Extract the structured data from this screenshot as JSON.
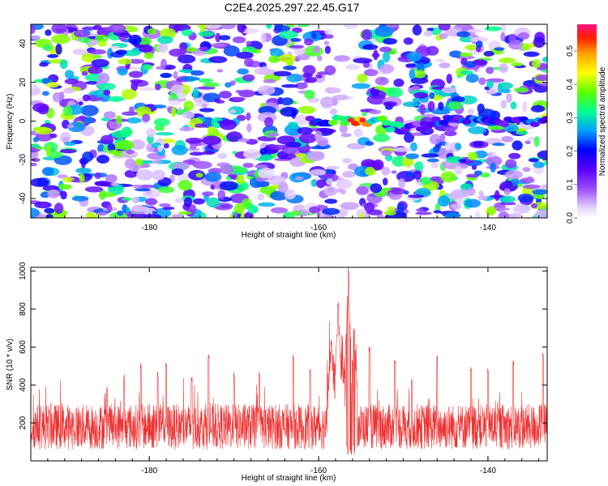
{
  "title": "C2E4.2025.297.22.45.G17",
  "chart_data": [
    {
      "type": "heatmap",
      "title": "C2E4.2025.297.22.45.G17",
      "xlabel": "Height of straight line (km)",
      "ylabel": "Frequency (Hz)",
      "xlim": [
        -194,
        -133
      ],
      "ylim": [
        -50,
        50
      ],
      "xticks": [
        -180,
        -160,
        -140
      ],
      "yticks": [
        -40,
        -20,
        0,
        20,
        40
      ],
      "xtick_labels": [
        "-180",
        "-160",
        "-140"
      ],
      "ytick_labels": [
        "-40",
        "-20",
        "0",
        "20",
        "40"
      ],
      "colorbar": {
        "label": "Normalized spectral amplitude",
        "range": [
          0,
          0.58
        ],
        "ticks": [
          0,
          0.1,
          0.2,
          0.3,
          0.4,
          0.5
        ],
        "tick_labels": [
          "0.0",
          "0.1",
          "0.2",
          "0.3",
          "0.4",
          "0.5"
        ]
      },
      "signal_band": {
        "frequency_hz": 0,
        "x_range_km": [
          -161,
          -133
        ],
        "peak_height_km": [
          -156,
          -154
        ],
        "peak_amplitude": 0.58
      },
      "cleared_band_km": [
        -158.5,
        -155
      ]
    },
    {
      "type": "line",
      "xlabel": "Height of straight line (km)",
      "ylabel": "SNR (10 * v/v)",
      "xlim": [
        -194,
        -133
      ],
      "ylim": [
        0,
        1020
      ],
      "xticks": [
        -180,
        -160,
        -140
      ],
      "yticks": [
        200,
        400,
        600,
        800,
        1000
      ],
      "xtick_labels": [
        "-180",
        "-160",
        "-140"
      ],
      "ytick_labels": [
        "200",
        "400",
        "600",
        "800",
        "1000"
      ],
      "color": "#ee3333",
      "series": [
        {
          "name": "SNR",
          "baseline": 180,
          "noise_amplitude": 120,
          "spikes": [
            {
              "x": -185,
              "y": 390
            },
            {
              "x": -183,
              "y": 460
            },
            {
              "x": -181,
              "y": 520
            },
            {
              "x": -179,
              "y": 470
            },
            {
              "x": -178,
              "y": 530
            },
            {
              "x": -175,
              "y": 450
            },
            {
              "x": -173,
              "y": 560
            },
            {
              "x": -170,
              "y": 470
            },
            {
              "x": -167,
              "y": 470
            },
            {
              "x": -163,
              "y": 560
            },
            {
              "x": -161,
              "y": 490
            },
            {
              "x": -158.5,
              "y": 640
            },
            {
              "x": -157.7,
              "y": 840
            },
            {
              "x": -156.5,
              "y": 1020
            },
            {
              "x": -155.8,
              "y": 700
            },
            {
              "x": -154,
              "y": 600
            },
            {
              "x": -151,
              "y": 530
            },
            {
              "x": -149,
              "y": 440
            },
            {
              "x": -146,
              "y": 560
            },
            {
              "x": -142,
              "y": 500
            },
            {
              "x": -140,
              "y": 490
            },
            {
              "x": -137,
              "y": 530
            },
            {
              "x": -133.5,
              "y": 580
            }
          ],
          "dip": {
            "x_range_km": [
              -156.8,
              -155.7
            ],
            "y": 20
          }
        }
      ]
    }
  ]
}
